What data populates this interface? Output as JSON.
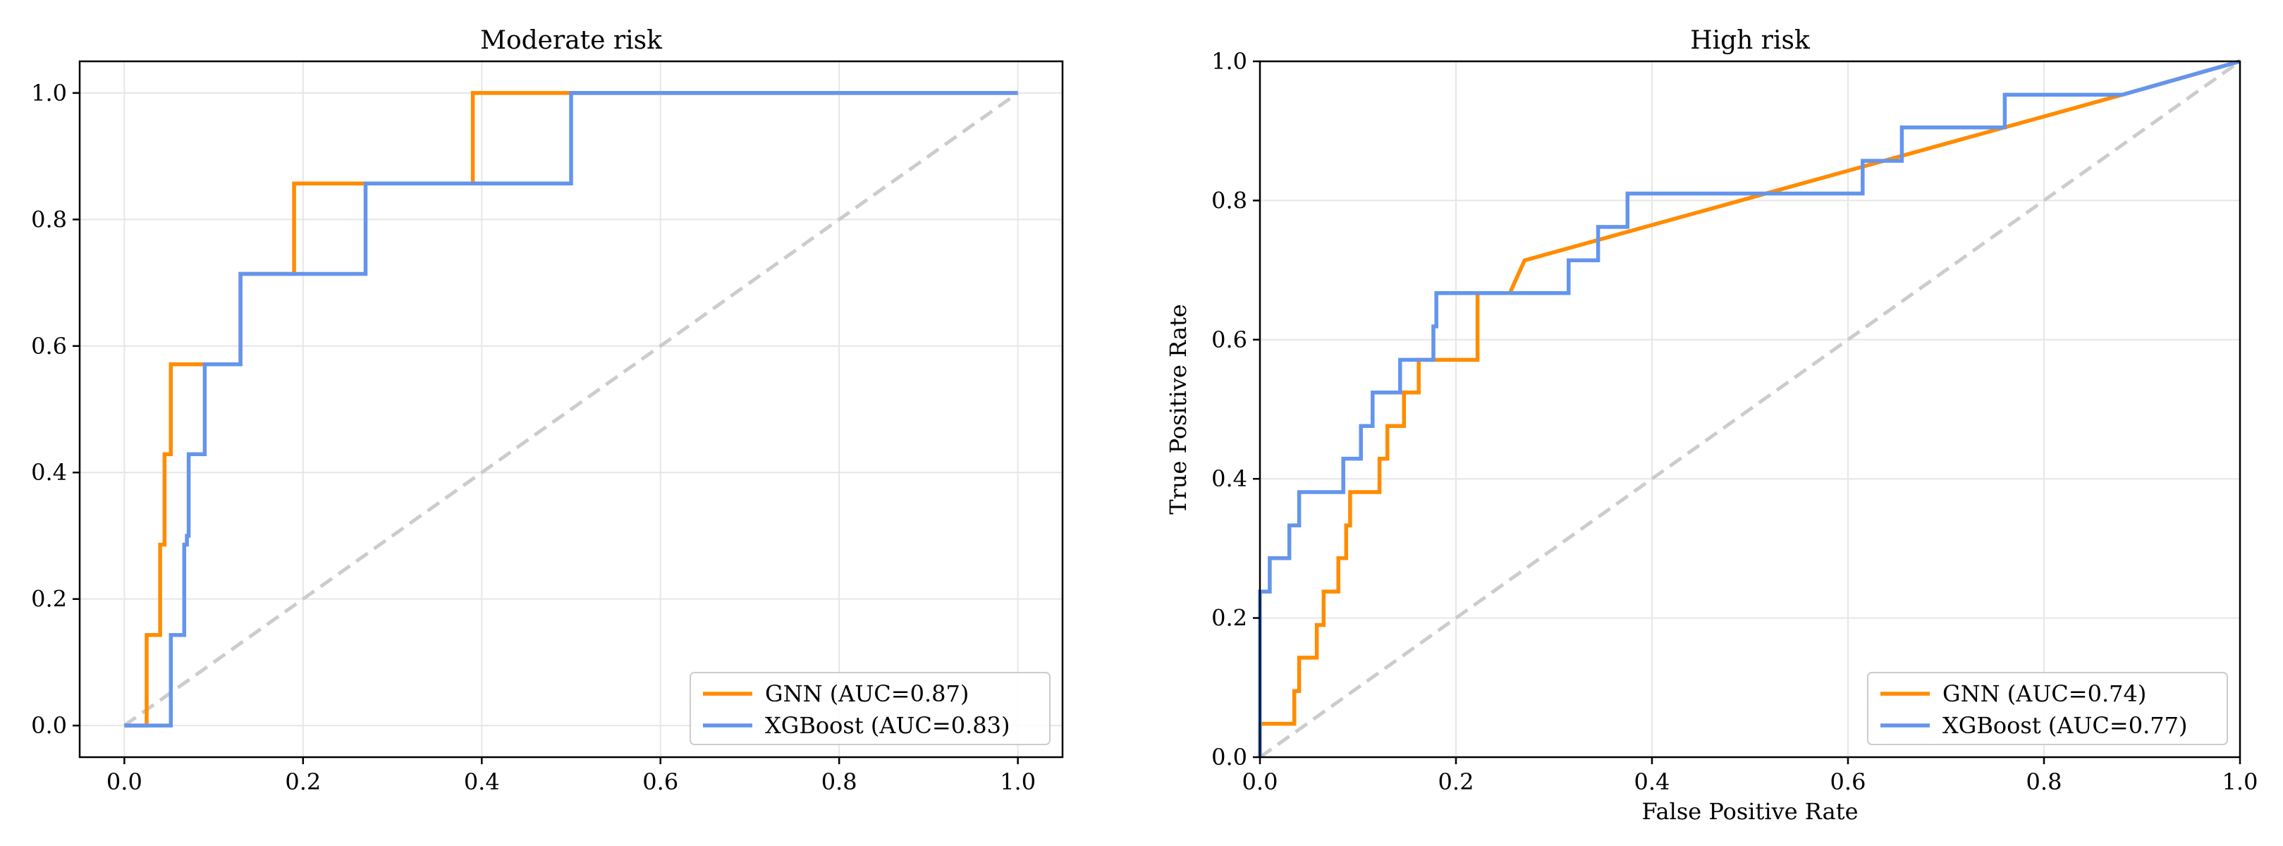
{
  "chart_data": [
    {
      "type": "line",
      "title": "Moderate risk",
      "xlabel": "",
      "ylabel": "",
      "xlim": [
        -0.05,
        1.05
      ],
      "ylim": [
        -0.05,
        1.05
      ],
      "xticks": [
        "0.0",
        "0.2",
        "0.4",
        "0.6",
        "0.8",
        "1.0"
      ],
      "yticks": [
        "0.0",
        "0.2",
        "0.4",
        "0.6",
        "0.8",
        "1.0"
      ],
      "grid": true,
      "legend_position": "lower-right",
      "diagonal": {
        "name": "chance",
        "color": "#cccccc",
        "style": "dashed"
      },
      "series": [
        {
          "name": "GNN",
          "label": "GNN (AUC=0.87)",
          "color": "#ff8c00",
          "x": [
            0.0,
            0.025,
            0.025,
            0.04,
            0.04,
            0.045,
            0.045,
            0.052,
            0.052,
            0.09,
            0.09,
            0.13,
            0.13,
            0.19,
            0.19,
            0.39,
            0.39,
            0.5,
            1.0
          ],
          "y": [
            0.0,
            0.0,
            0.143,
            0.143,
            0.286,
            0.286,
            0.429,
            0.429,
            0.571,
            0.571,
            0.571,
            0.571,
            0.714,
            0.714,
            0.857,
            0.857,
            1.0,
            1.0,
            1.0
          ]
        },
        {
          "name": "XGBoost",
          "label": "XGBoost (AUC=0.83)",
          "color": "#6495ed",
          "x": [
            0.0,
            0.052,
            0.052,
            0.067,
            0.067,
            0.07,
            0.07,
            0.072,
            0.072,
            0.09,
            0.09,
            0.13,
            0.13,
            0.27,
            0.27,
            0.5,
            0.5,
            1.0
          ],
          "y": [
            0.0,
            0.0,
            0.143,
            0.143,
            0.286,
            0.286,
            0.3,
            0.3,
            0.429,
            0.429,
            0.571,
            0.571,
            0.714,
            0.714,
            0.857,
            0.857,
            1.0,
            1.0
          ]
        }
      ]
    },
    {
      "type": "line",
      "title": "High risk",
      "xlabel": "False Positive Rate",
      "ylabel": "True Positive Rate",
      "xlim": [
        0.0,
        1.0
      ],
      "ylim": [
        0.0,
        1.0
      ],
      "xticks": [
        "0.0",
        "0.2",
        "0.4",
        "0.6",
        "0.8",
        "1.0"
      ],
      "yticks": [
        "0.0",
        "0.2",
        "0.4",
        "0.6",
        "0.8",
        "1.0"
      ],
      "grid": true,
      "legend_position": "lower-right",
      "diagonal": {
        "name": "chance",
        "color": "#cccccc",
        "style": "dashed"
      },
      "series": [
        {
          "name": "GNN",
          "label": "GNN (AUC=0.74)",
          "color": "#ff8c00",
          "x": [
            0.0,
            0.0,
            0.035,
            0.035,
            0.04,
            0.04,
            0.058,
            0.058,
            0.065,
            0.065,
            0.08,
            0.08,
            0.088,
            0.088,
            0.092,
            0.092,
            0.122,
            0.122,
            0.13,
            0.13,
            0.147,
            0.147,
            0.162,
            0.162,
            0.222,
            0.222,
            0.255,
            0.27,
            0.88,
            1.0
          ],
          "y": [
            0.0,
            0.048,
            0.048,
            0.095,
            0.095,
            0.143,
            0.143,
            0.19,
            0.19,
            0.238,
            0.238,
            0.286,
            0.286,
            0.333,
            0.333,
            0.381,
            0.381,
            0.429,
            0.429,
            0.476,
            0.476,
            0.524,
            0.524,
            0.571,
            0.571,
            0.667,
            0.667,
            0.714,
            0.952,
            1.0
          ]
        },
        {
          "name": "XGBoost",
          "label": "XGBoost (AUC=0.77)",
          "color": "#6495ed",
          "x": [
            0.0,
            0.0,
            0.01,
            0.01,
            0.03,
            0.03,
            0.04,
            0.04,
            0.085,
            0.085,
            0.103,
            0.103,
            0.115,
            0.115,
            0.143,
            0.143,
            0.177,
            0.177,
            0.18,
            0.18,
            0.315,
            0.315,
            0.345,
            0.345,
            0.375,
            0.375,
            0.615,
            0.615,
            0.655,
            0.655,
            0.76,
            0.76,
            0.88,
            1.0
          ],
          "y": [
            0.0,
            0.238,
            0.238,
            0.286,
            0.286,
            0.333,
            0.333,
            0.381,
            0.381,
            0.429,
            0.429,
            0.476,
            0.476,
            0.524,
            0.524,
            0.571,
            0.571,
            0.619,
            0.619,
            0.667,
            0.667,
            0.714,
            0.714,
            0.762,
            0.762,
            0.81,
            0.81,
            0.857,
            0.857,
            0.905,
            0.905,
            0.952,
            0.952,
            1.0
          ]
        }
      ]
    }
  ]
}
